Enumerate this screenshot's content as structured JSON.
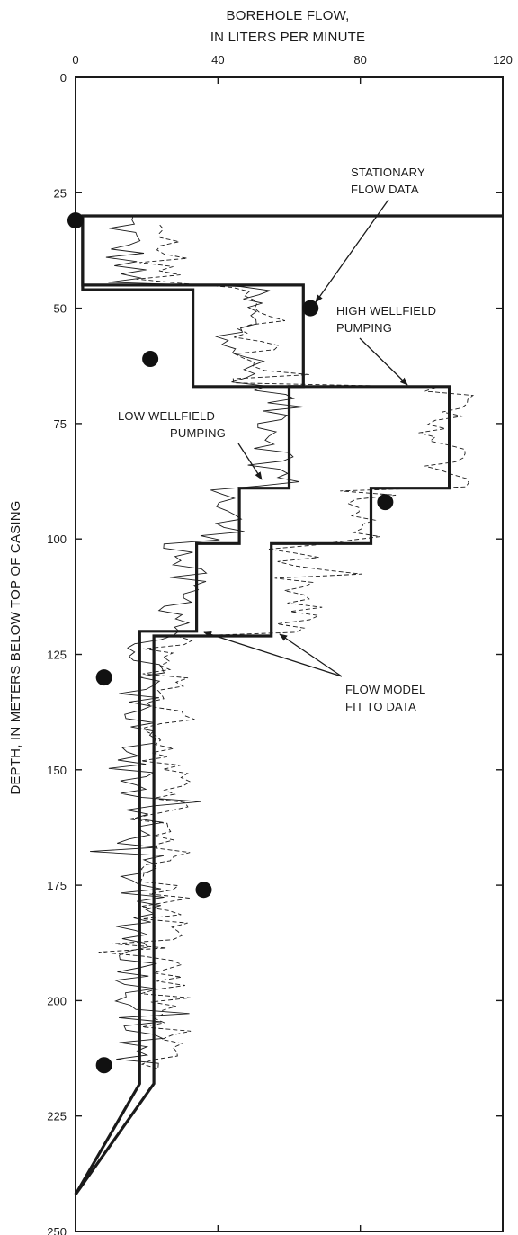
{
  "chart_data": {
    "type": "line",
    "xlabel": "BOREHOLE FLOW, IN LITERS PER MINUTE",
    "xlabel_lines": [
      "BOREHOLE FLOW,",
      "IN LITERS PER MINUTE"
    ],
    "ylabel": "DEPTH, IN METERS BELOW TOP OF CASING",
    "xlim": [
      0,
      120
    ],
    "ylim": [
      250,
      0
    ],
    "x_ticks": [
      0,
      40,
      80,
      120
    ],
    "y_ticks": [
      0,
      25,
      50,
      75,
      100,
      125,
      150,
      175,
      200,
      225,
      250
    ],
    "grid": false,
    "series": [
      {
        "style": "dots",
        "points": [
          [
            0,
            31
          ],
          [
            66,
            50
          ],
          [
            21,
            61
          ],
          [
            87,
            92
          ],
          [
            8,
            130
          ],
          [
            36,
            176
          ],
          [
            8,
            214
          ]
        ]
      },
      {
        "style": "thick-step",
        "points": [
          [
            120,
            30
          ],
          [
            2,
            30
          ],
          [
            2,
            45
          ],
          [
            64,
            45
          ],
          [
            64,
            67
          ],
          [
            60,
            67
          ],
          [
            60,
            89
          ],
          [
            46,
            89
          ],
          [
            46,
            101
          ],
          [
            34,
            101
          ],
          [
            34,
            120
          ],
          [
            18,
            120
          ],
          [
            18,
            218
          ],
          [
            0,
            242
          ]
        ]
      },
      {
        "style": "thick-step",
        "points": [
          [
            2,
            30
          ],
          [
            2,
            46
          ],
          [
            33,
            46
          ],
          [
            33,
            67
          ],
          [
            105,
            67
          ],
          [
            105,
            89
          ],
          [
            83,
            89
          ],
          [
            83,
            101
          ],
          [
            55,
            101
          ],
          [
            55,
            121
          ],
          [
            22,
            121
          ],
          [
            22,
            218
          ],
          [
            0,
            242
          ]
        ]
      }
    ],
    "annotations": [
      {
        "lines": [
          "STATIONARY",
          "FLOW DATA"
        ]
      },
      {
        "lines": [
          "HIGH WELLFIELD",
          "PUMPING"
        ]
      },
      {
        "lines": [
          "LOW WELLFIELD",
          "PUMPING"
        ]
      },
      {
        "lines": [
          "FLOW MODEL",
          "FIT TO DATA"
        ]
      }
    ]
  }
}
